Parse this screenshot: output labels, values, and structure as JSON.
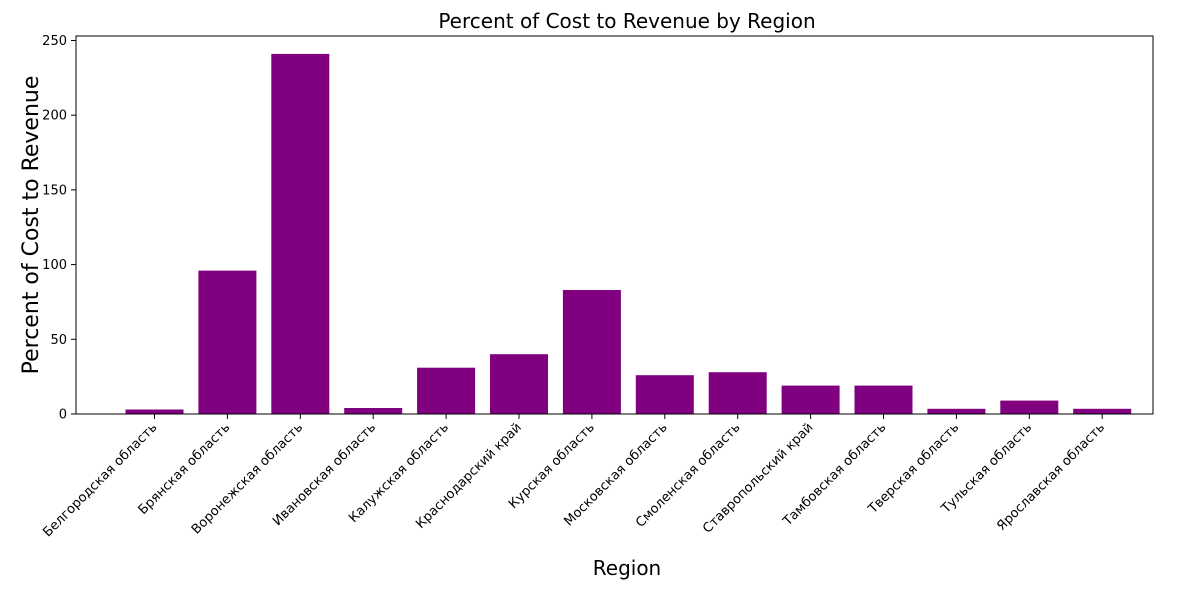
{
  "chart_data": {
    "type": "bar",
    "title": "Percent of Cost to Revenue by Region",
    "xlabel": "Region",
    "ylabel": "Percent of Cost to Revenue",
    "categories": [
      "Белгородская область",
      "Брянская область",
      "Воронежская область",
      "Ивановская область",
      "Калужская область",
      "Краснодарский край",
      "Курская область",
      "Московская область",
      "Смоленская область",
      "Ставропольский край",
      "Тамбовская область",
      "Тверская область",
      "Тульская область",
      "Ярославская область"
    ],
    "values": [
      3,
      96,
      241,
      4,
      31,
      40,
      83,
      26,
      28,
      19,
      19,
      3.5,
      9,
      3.5
    ],
    "ylim": [
      0,
      253
    ],
    "yticks": [
      0,
      50,
      100,
      150,
      200,
      250
    ],
    "bar_color": "#800080",
    "grid": false,
    "legend": "none"
  }
}
